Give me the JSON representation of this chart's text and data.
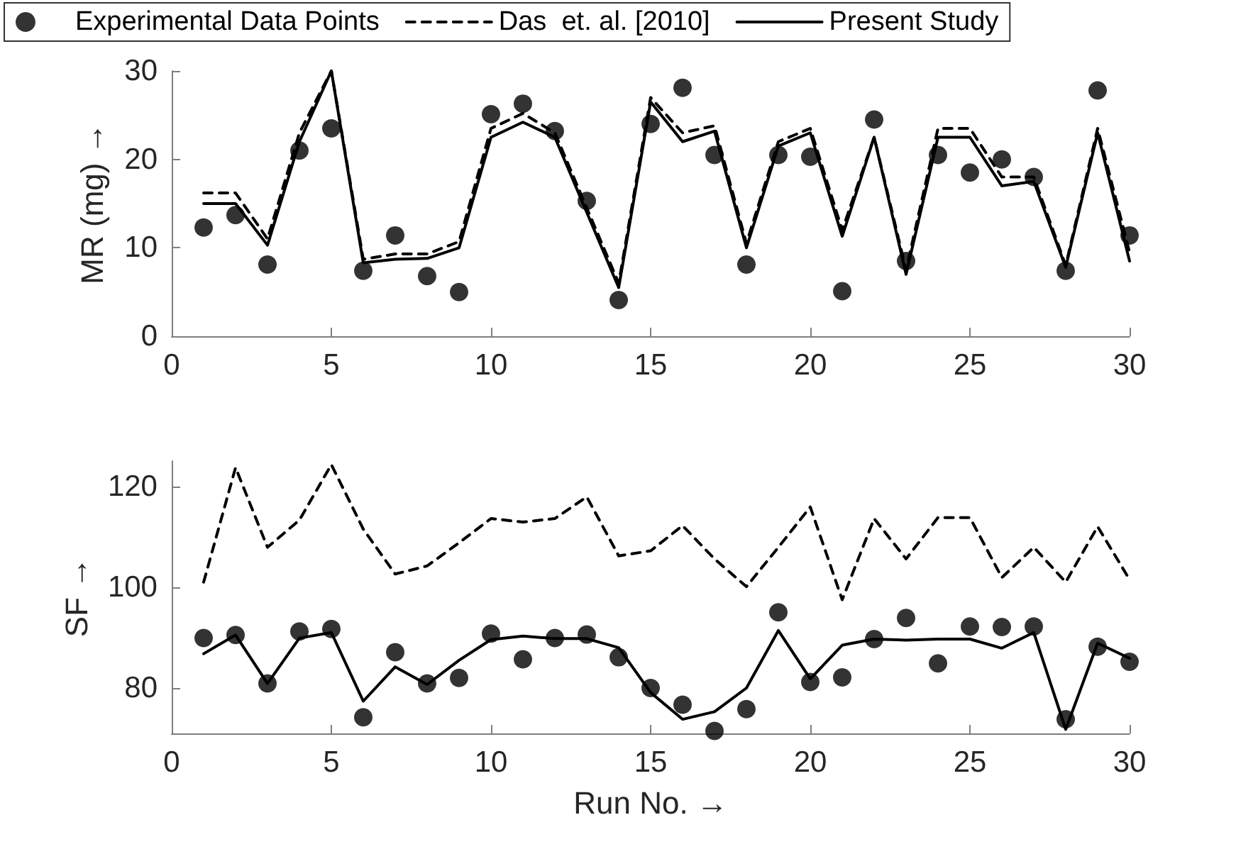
{
  "chart_data": [
    {
      "type": "line",
      "ylabel": "MR (mg) →",
      "legend": "top",
      "x": [
        1,
        2,
        3,
        4,
        5,
        6,
        7,
        8,
        9,
        10,
        11,
        12,
        13,
        14,
        15,
        16,
        17,
        18,
        19,
        20,
        21,
        22,
        23,
        24,
        25,
        26,
        27,
        28,
        29,
        30
      ],
      "xlim": [
        0,
        30
      ],
      "xticks": [
        0,
        5,
        10,
        15,
        20,
        25,
        30
      ],
      "ylim": [
        0,
        30
      ],
      "yticks": [
        0,
        10,
        20,
        30
      ],
      "series": [
        {
          "name": "Experimental Data Points",
          "type": "scatter",
          "marker": "circle",
          "color": "#000000",
          "values": [
            12.3,
            13.7,
            8.1,
            21,
            23.5,
            7.4,
            11.4,
            6.8,
            5,
            25.1,
            26.3,
            23.2,
            15.3,
            4.1,
            24,
            28.1,
            20.5,
            8.1,
            20.5,
            20.3,
            5.1,
            24.5,
            8.5,
            20.5,
            18.5,
            20,
            18,
            7.4,
            27.8,
            11.4
          ]
        },
        {
          "name": "Das  et. al. [2010]",
          "type": "line",
          "line_style": "dashed",
          "color": "#000000",
          "values": [
            16.2,
            16.2,
            11,
            23,
            30,
            8.7,
            9.3,
            9.3,
            10.7,
            23.5,
            25.2,
            23,
            14.5,
            6,
            27,
            23,
            23.8,
            10.5,
            22,
            23.5,
            12,
            22.5,
            7.5,
            23.5,
            23.5,
            18,
            18,
            8,
            23.5,
            9.5
          ]
        },
        {
          "name": "Present Study",
          "type": "line",
          "line_style": "solid",
          "color": "#000000",
          "values": [
            15,
            15,
            10.3,
            22,
            30,
            8.3,
            8.7,
            8.8,
            10,
            22.5,
            24.2,
            22.5,
            14,
            5.5,
            26.5,
            22,
            23.2,
            10,
            21.5,
            23,
            11.3,
            22.5,
            7,
            22.5,
            22.5,
            17,
            17.5,
            7.8,
            23,
            8.5
          ]
        }
      ]
    },
    {
      "type": "line",
      "ylabel": "SF →",
      "xlabel": "Run No. →",
      "x": [
        1,
        2,
        3,
        4,
        5,
        6,
        7,
        8,
        9,
        10,
        11,
        12,
        13,
        14,
        15,
        16,
        17,
        18,
        19,
        20,
        21,
        22,
        23,
        24,
        25,
        26,
        27,
        28,
        29,
        30
      ],
      "xlim": [
        0,
        30
      ],
      "xticks": [
        0,
        5,
        10,
        15,
        20,
        25,
        30
      ],
      "ylim": [
        71,
        125
      ],
      "yticks": [
        80,
        100,
        120
      ],
      "series": [
        {
          "type": "scatter",
          "marker": "circle",
          "color": "#000000",
          "values": [
            89.9,
            90.5,
            80.9,
            91.2,
            91.7,
            74.2,
            87.1,
            80.9,
            82,
            90.8,
            85.7,
            89.9,
            90.6,
            86.1,
            80,
            76.7,
            71.5,
            75.8,
            95,
            81.2,
            82.1,
            89.7,
            93.9,
            84.9,
            92.2,
            92.1,
            92.2,
            73.8,
            88.2,
            85.2
          ]
        },
        {
          "type": "line",
          "line_style": "dashed",
          "color": "#000000",
          "values": [
            101,
            123.7,
            107.9,
            113.3,
            124.3,
            111.5,
            102.6,
            104.2,
            108.8,
            113.6,
            112.9,
            113.6,
            117.9,
            106.2,
            107.2,
            112.2,
            105.6,
            100.1,
            107.9,
            115.9,
            97.5,
            113.6,
            105.6,
            113.8,
            113.8,
            101.9,
            107.9,
            101,
            112,
            101.5
          ]
        },
        {
          "type": "line",
          "line_style": "solid",
          "color": "#000000",
          "values": [
            86.8,
            90.5,
            80.9,
            89.9,
            91,
            77.4,
            84.2,
            80.7,
            85.5,
            89.6,
            90.3,
            89.8,
            89.8,
            88,
            79.1,
            73.8,
            75.3,
            80,
            91.4,
            81.8,
            88.5,
            89.7,
            89.5,
            89.7,
            89.7,
            87.9,
            91,
            71.8,
            88.9,
            85.9
          ]
        }
      ]
    }
  ]
}
